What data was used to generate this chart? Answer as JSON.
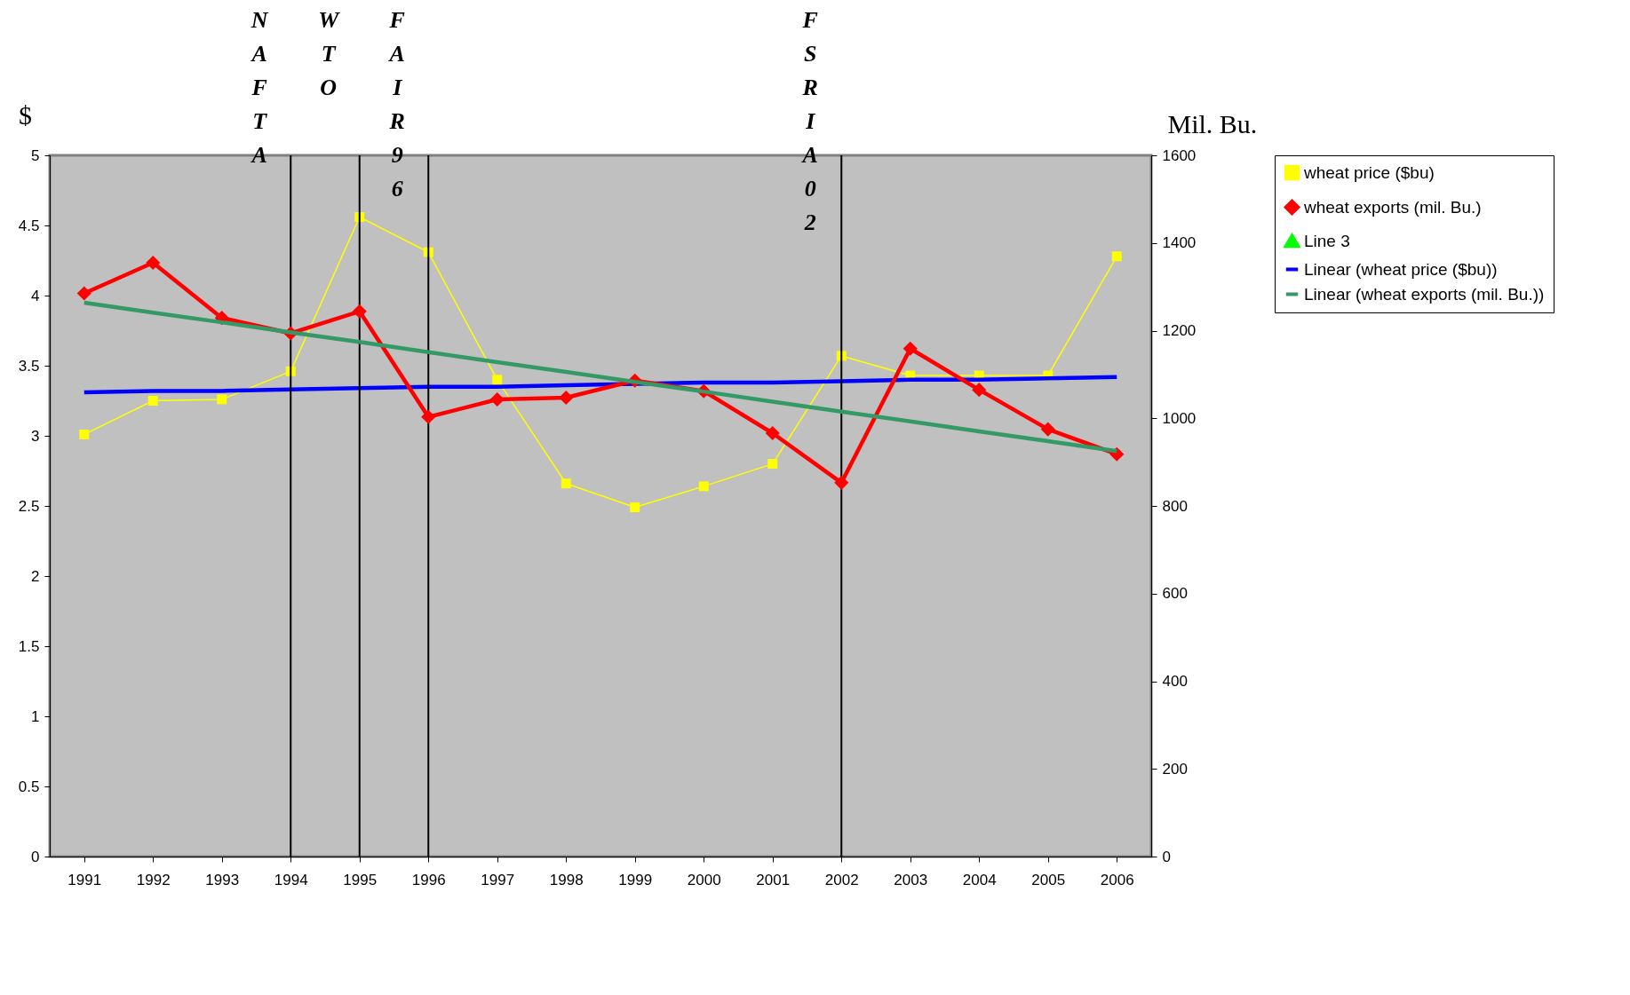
{
  "chart_data": {
    "type": "line",
    "categories": [
      "1991",
      "1992",
      "1993",
      "1994",
      "1995",
      "1996",
      "1997",
      "1998",
      "1999",
      "2000",
      "2001",
      "2002",
      "2003",
      "2004",
      "2005",
      "2006"
    ],
    "ylabel": "$",
    "y2label": "Mil. Bu.",
    "ylim": [
      0,
      5
    ],
    "yticks": [
      0,
      0.5,
      1,
      1.5,
      2,
      2.5,
      3,
      3.5,
      4,
      4.5,
      5
    ],
    "y2lim": [
      0,
      1600
    ],
    "y2ticks": [
      0,
      200,
      400,
      600,
      800,
      1000,
      1200,
      1400,
      1600
    ],
    "grid": false,
    "legend": "right",
    "series": [
      {
        "name": "wheat price ($bu)",
        "color": "#ffff00",
        "marker": "square",
        "values": [
          3.01,
          3.25,
          3.26,
          3.46,
          4.56,
          4.31,
          3.4,
          2.66,
          2.49,
          2.64,
          2.8,
          3.57,
          3.43,
          3.43,
          3.43,
          4.28
        ]
      },
      {
        "name": "wheat exports (mil. Bu.)",
        "color": "#ff0000",
        "marker": "diamond",
        "axis": "y2",
        "values": [
          1285,
          1355,
          1229,
          1194,
          1244,
          1003,
          1043,
          1047,
          1086,
          1062,
          966,
          853,
          1159,
          1065,
          975,
          918
        ]
      },
      {
        "name": "Line 3",
        "color": "#00ff00",
        "marker": "triangle",
        "values": [
          null,
          null,
          null,
          null,
          null,
          null,
          null,
          null,
          null,
          null,
          null,
          null,
          null,
          null,
          null,
          null
        ]
      },
      {
        "name": "Linear (wheat price ($bu))",
        "color": "#0000ff",
        "marker": "none",
        "values": [
          3.31,
          3.32,
          3.32,
          3.33,
          3.34,
          3.35,
          3.35,
          3.36,
          3.37,
          3.38,
          3.38,
          3.39,
          3.4,
          3.4,
          3.41,
          3.42
        ]
      },
      {
        "name": "Linear (wheat exports (mil. Bu.))",
        "color": "#339966",
        "marker": "none",
        "axis": "y2",
        "values": [
          1264,
          1241,
          1219,
          1196,
          1174,
          1151,
          1128,
          1106,
          1083,
          1061,
          1038,
          1015,
          993,
          970,
          948,
          925
        ]
      }
    ],
    "ref_lines": [
      {
        "axis": "x",
        "value": "1994",
        "label": "NAFTA",
        "color": "#000000"
      },
      {
        "axis": "x",
        "value": "1995",
        "label": "WTO",
        "color": "#000000"
      },
      {
        "axis": "x",
        "value": "1996",
        "label": "FAIR96",
        "color": "#000000"
      },
      {
        "axis": "x",
        "value": "2002",
        "label": "FSRIA02",
        "color": "#000000"
      }
    ]
  }
}
